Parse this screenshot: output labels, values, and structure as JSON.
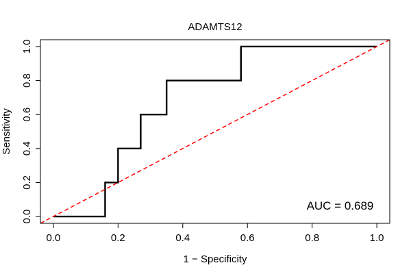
{
  "chart_data": {
    "type": "line",
    "title": "ADAMTS12",
    "xlabel": "1 − Specificity",
    "ylabel": "Sensitivity",
    "xlim": [
      -0.04,
      1.04
    ],
    "ylim": [
      -0.04,
      1.04
    ],
    "xticks": [
      0.0,
      0.2,
      0.4,
      0.6,
      0.8,
      1.0
    ],
    "xtick_labels": [
      "0.0",
      "0.2",
      "0.4",
      "0.6",
      "0.8",
      "1.0"
    ],
    "yticks": [
      0.0,
      0.2,
      0.4,
      0.6,
      0.8,
      1.0
    ],
    "ytick_labels": [
      "0.0",
      "0.2",
      "0.4",
      "0.6",
      "0.8",
      "1.0"
    ],
    "grid": false,
    "series": [
      {
        "name": "ROC curve",
        "style": "step",
        "color": "#000000",
        "x": [
          0.0,
          0.16,
          0.16,
          0.2,
          0.2,
          0.27,
          0.27,
          0.35,
          0.35,
          0.58,
          0.58,
          1.0
        ],
        "y": [
          0.0,
          0.0,
          0.2,
          0.2,
          0.4,
          0.4,
          0.6,
          0.6,
          0.8,
          0.8,
          1.0,
          1.0
        ]
      },
      {
        "name": "reference diagonal",
        "style": "dashed",
        "color": "#ff0000",
        "x": [
          -0.04,
          1.04
        ],
        "y": [
          -0.04,
          1.04
        ]
      }
    ],
    "annotations": [
      {
        "text": "AUC = 0.689",
        "x": 0.99,
        "y": 0.04,
        "anchor": "end"
      }
    ]
  }
}
